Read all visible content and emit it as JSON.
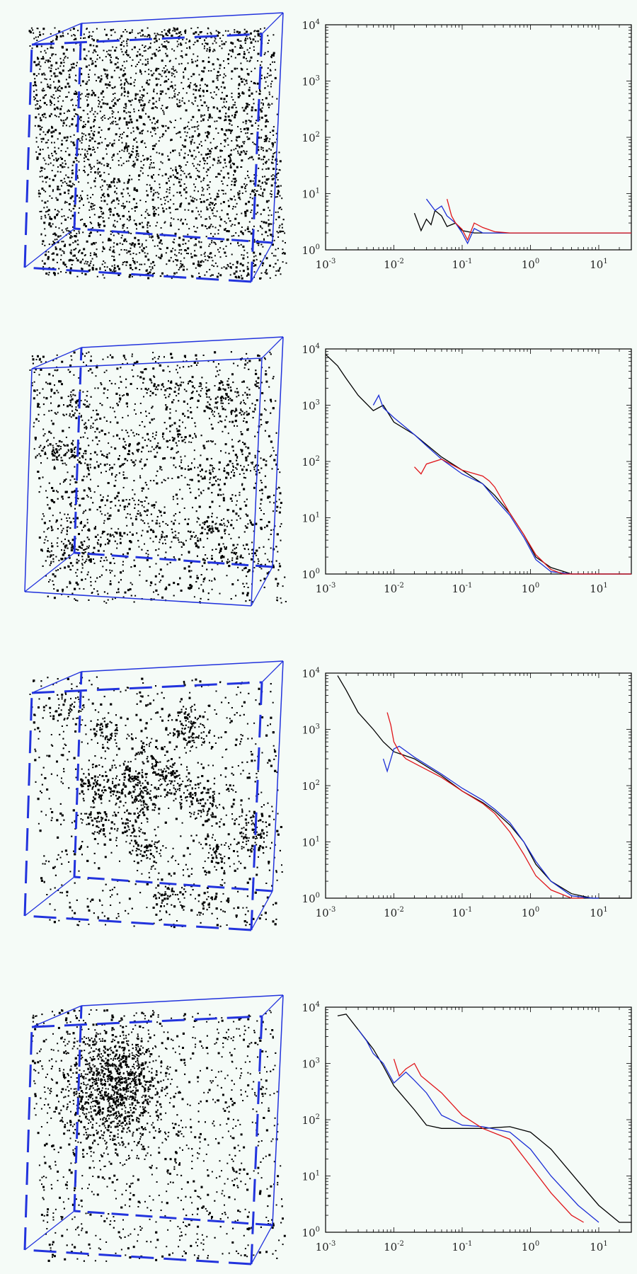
{
  "figure": {
    "panel_count": 4,
    "colors": {
      "frame": "#2233dd",
      "black": "#000000",
      "blue": "#1d2fd6",
      "red": "#e0161b",
      "background": "#f5fbf7"
    }
  },
  "chart_data": [
    {
      "type": "line",
      "xscale": "log",
      "yscale": "log",
      "xlim": [
        0.001,
        30
      ],
      "ylim": [
        1,
        10000
      ],
      "xticks": [
        "10-3",
        "10-2",
        "10-1",
        "100",
        "101"
      ],
      "yticks": [
        "100",
        "101",
        "102",
        "103",
        "104"
      ],
      "cube_style": "random",
      "series": [
        {
          "color": "black",
          "x": [
            0.02,
            0.025,
            0.03,
            0.035,
            0.04,
            0.05,
            0.06,
            0.08,
            0.1,
            0.15,
            0.3,
            1,
            10,
            30
          ],
          "y": [
            4.5,
            2.2,
            3.5,
            2.8,
            5,
            4,
            2.6,
            3,
            2.2,
            2,
            2,
            2,
            2,
            2
          ]
        },
        {
          "color": "blue",
          "x": [
            0.03,
            0.04,
            0.05,
            0.06,
            0.08,
            0.1,
            0.12,
            0.15,
            0.2,
            0.4,
            1,
            10,
            30
          ],
          "y": [
            8,
            5,
            6,
            4,
            3,
            2,
            1.3,
            2.4,
            2,
            2,
            2,
            2,
            2
          ]
        },
        {
          "color": "red",
          "x": [
            0.06,
            0.07,
            0.08,
            0.1,
            0.12,
            0.15,
            0.2,
            0.3,
            0.5,
            1,
            10,
            30
          ],
          "y": [
            8,
            4,
            3,
            2.3,
            1.5,
            3,
            2.5,
            2.1,
            2,
            2,
            2,
            2
          ]
        }
      ]
    },
    {
      "type": "line",
      "xscale": "log",
      "yscale": "log",
      "xlim": [
        0.001,
        30
      ],
      "ylim": [
        1,
        10000
      ],
      "xticks": [
        "10-3",
        "10-2",
        "10-1",
        "100",
        "101"
      ],
      "yticks": [
        "100",
        "101",
        "102",
        "103",
        "104"
      ],
      "cube_style": "filamentary",
      "series": [
        {
          "color": "black",
          "x": [
            0.001,
            0.0015,
            0.002,
            0.003,
            0.005,
            0.007,
            0.01,
            0.02,
            0.03,
            0.05,
            0.1,
            0.2,
            0.3,
            0.5,
            0.8,
            1.2,
            2,
            4,
            10,
            30
          ],
          "y": [
            8000,
            5000,
            3000,
            1500,
            800,
            1000,
            500,
            300,
            200,
            120,
            70,
            40,
            25,
            12,
            5,
            2,
            1.3,
            1,
            1,
            1
          ]
        },
        {
          "color": "blue",
          "x": [
            0.005,
            0.006,
            0.007,
            0.01,
            0.02,
            0.03,
            0.05,
            0.1,
            0.2,
            0.3,
            0.5,
            0.8,
            1.2,
            2,
            4,
            10,
            30
          ],
          "y": [
            1000,
            1500,
            900,
            600,
            300,
            190,
            110,
            60,
            40,
            22,
            11,
            4.5,
            1.8,
            1.1,
            1,
            1,
            1
          ]
        },
        {
          "color": "red",
          "x": [
            0.02,
            0.025,
            0.03,
            0.05,
            0.1,
            0.2,
            0.25,
            0.3,
            0.5,
            0.8,
            1.2,
            2,
            3,
            10,
            30
          ],
          "y": [
            80,
            60,
            90,
            110,
            70,
            55,
            45,
            35,
            12,
            5,
            2.2,
            1.2,
            1,
            1,
            1
          ]
        }
      ]
    },
    {
      "type": "line",
      "xscale": "log",
      "yscale": "log",
      "xlim": [
        0.001,
        30
      ],
      "ylim": [
        1,
        10000
      ],
      "xticks": [
        "10-3",
        "10-2",
        "10-1",
        "100",
        "101"
      ],
      "yticks": [
        "100",
        "101",
        "102",
        "103",
        "104"
      ],
      "cube_style": "clustered",
      "series": [
        {
          "color": "black",
          "x": [
            0.0015,
            0.002,
            0.003,
            0.005,
            0.007,
            0.01,
            0.02,
            0.05,
            0.1,
            0.2,
            0.3,
            0.5,
            0.8,
            1.2,
            2,
            4,
            8,
            10,
            30
          ],
          "y": [
            9000,
            5000,
            2000,
            1000,
            600,
            400,
            300,
            150,
            80,
            50,
            35,
            20,
            10,
            4,
            2,
            1.2,
            1,
            1,
            1
          ]
        },
        {
          "color": "blue",
          "x": [
            0.007,
            0.008,
            0.01,
            0.012,
            0.02,
            0.05,
            0.1,
            0.2,
            0.3,
            0.5,
            0.8,
            1.2,
            2,
            4,
            8,
            10
          ],
          "y": [
            300,
            180,
            450,
            500,
            320,
            160,
            90,
            55,
            38,
            22,
            10,
            4.5,
            2,
            1.1,
            1,
            1
          ]
        },
        {
          "color": "red",
          "x": [
            0.008,
            0.009,
            0.01,
            0.012,
            0.015,
            0.02,
            0.05,
            0.1,
            0.2,
            0.3,
            0.5,
            0.8,
            1.2,
            2,
            4,
            6
          ],
          "y": [
            2000,
            1200,
            600,
            400,
            300,
            250,
            140,
            80,
            48,
            32,
            15,
            6,
            2.5,
            1.4,
            1,
            1
          ]
        }
      ]
    },
    {
      "type": "line",
      "xscale": "log",
      "yscale": "log",
      "xlim": [
        0.001,
        30
      ],
      "ylim": [
        1,
        10000
      ],
      "xticks": [
        "10-3",
        "10-2",
        "10-1",
        "100",
        "101"
      ],
      "yticks": [
        "100",
        "101",
        "102",
        "103",
        "104"
      ],
      "cube_style": "central",
      "series": [
        {
          "color": "black",
          "x": [
            0.0015,
            0.002,
            0.003,
            0.005,
            0.007,
            0.01,
            0.02,
            0.03,
            0.05,
            0.1,
            0.2,
            0.5,
            1,
            2,
            5,
            10,
            20,
            30
          ],
          "y": [
            7000,
            7500,
            4000,
            1800,
            900,
            400,
            150,
            80,
            70,
            70,
            70,
            75,
            60,
            30,
            8,
            3,
            1.5,
            1.5
          ]
        },
        {
          "color": "blue",
          "x": [
            0.003,
            0.004,
            0.005,
            0.007,
            0.01,
            0.015,
            0.02,
            0.03,
            0.05,
            0.1,
            0.2,
            0.5,
            1,
            2,
            5,
            10
          ],
          "y": [
            4000,
            2500,
            1500,
            1000,
            450,
            700,
            500,
            300,
            120,
            80,
            75,
            60,
            30,
            10,
            3,
            1.5
          ]
        },
        {
          "color": "red",
          "x": [
            0.01,
            0.012,
            0.015,
            0.02,
            0.025,
            0.03,
            0.05,
            0.1,
            0.2,
            0.5,
            1,
            2,
            4,
            6
          ],
          "y": [
            1200,
            600,
            800,
            1000,
            600,
            500,
            300,
            120,
            70,
            45,
            15,
            5,
            2,
            1.5
          ]
        }
      ]
    }
  ]
}
